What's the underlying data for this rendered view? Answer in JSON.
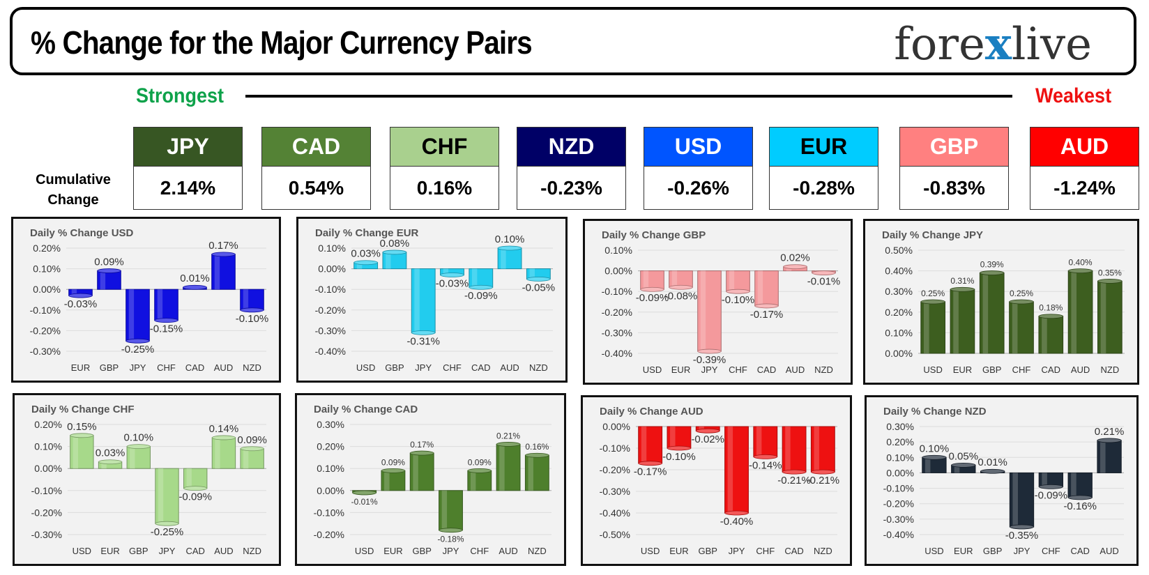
{
  "header": {
    "title": "% Change for the Major Currency Pairs",
    "logo_left": "fore",
    "logo_mark": "x",
    "logo_right": "live"
  },
  "ranking": {
    "strongest_label": "Strongest",
    "weakest_label": "Weakest",
    "cumulative_label_line1": "Cumulative",
    "cumulative_label_line2": "Change",
    "currencies": [
      {
        "code": "JPY",
        "value": "2.14%",
        "bg": "#375623",
        "fg": "#ffffff"
      },
      {
        "code": "CAD",
        "value": "0.54%",
        "bg": "#548235",
        "fg": "#ffffff"
      },
      {
        "code": "CHF",
        "value": "0.16%",
        "bg": "#a9d08e",
        "fg": "#000000"
      },
      {
        "code": "NZD",
        "value": "-0.23%",
        "bg": "#000066",
        "fg": "#ffffff"
      },
      {
        "code": "USD",
        "value": "-0.26%",
        "bg": "#0055ff",
        "fg": "#ffffff"
      },
      {
        "code": "EUR",
        "value": "-0.28%",
        "bg": "#00ccff",
        "fg": "#000000"
      },
      {
        "code": "GBP",
        "value": "-0.83%",
        "bg": "#ff8080",
        "fg": "#ffffff"
      },
      {
        "code": "AUD",
        "value": "-1.24%",
        "bg": "#ff0000",
        "fg": "#ffffff"
      }
    ]
  },
  "chart_data": [
    {
      "type": "bar",
      "title": "Daily % Change USD",
      "color": "#1010e0",
      "categories": [
        "EUR",
        "GBP",
        "JPY",
        "CHF",
        "CAD",
        "AUD",
        "NZD"
      ],
      "values": [
        -0.03,
        0.09,
        -0.25,
        -0.15,
        0.01,
        0.17,
        -0.1
      ],
      "ylim": [
        -0.3,
        0.2
      ],
      "yticks": [
        "0.20%",
        "0.10%",
        "0.00%",
        "-0.10%",
        "-0.20%",
        "-0.30%"
      ]
    },
    {
      "type": "bar",
      "title": "Daily % Change EUR",
      "color": "#22ccee",
      "categories": [
        "USD",
        "GBP",
        "JPY",
        "CHF",
        "CAD",
        "AUD",
        "NZD"
      ],
      "values": [
        0.03,
        0.08,
        -0.31,
        -0.03,
        -0.09,
        0.1,
        -0.05
      ],
      "ylim": [
        -0.4,
        0.1
      ],
      "yticks": [
        "0.10%",
        "0.00%",
        "-0.10%",
        "-0.20%",
        "-0.30%",
        "-0.40%"
      ]
    },
    {
      "type": "bar",
      "title": "Daily % Change GBP",
      "color": "#f4999c",
      "categories": [
        "USD",
        "EUR",
        "JPY",
        "CHF",
        "CAD",
        "AUD",
        "NZD"
      ],
      "values": [
        -0.09,
        -0.08,
        -0.39,
        -0.1,
        -0.17,
        0.02,
        -0.01
      ],
      "ylim": [
        -0.4,
        0.1
      ],
      "yticks": [
        "0.10%",
        "0.00%",
        "-0.10%",
        "-0.20%",
        "-0.30%",
        "-0.40%"
      ]
    },
    {
      "type": "bar",
      "title": "Daily % Change JPY",
      "color": "#3d5e1f",
      "categories": [
        "USD",
        "EUR",
        "GBP",
        "CHF",
        "CAD",
        "AUD",
        "NZD"
      ],
      "values": [
        0.25,
        0.31,
        0.39,
        0.25,
        0.18,
        0.4,
        0.35
      ],
      "ylim": [
        0.0,
        0.5
      ],
      "yticks": [
        "0.50%",
        "0.40%",
        "0.30%",
        "0.20%",
        "0.10%",
        "0.00%"
      ]
    },
    {
      "type": "bar",
      "title": "Daily % Change CHF",
      "color": "#a7d98a",
      "categories": [
        "USD",
        "EUR",
        "GBP",
        "JPY",
        "CAD",
        "AUD",
        "NZD"
      ],
      "values": [
        0.15,
        0.03,
        0.1,
        -0.25,
        -0.09,
        0.14,
        0.09
      ],
      "ylim": [
        -0.3,
        0.2
      ],
      "yticks": [
        "0.20%",
        "0.10%",
        "0.00%",
        "-0.10%",
        "-0.20%",
        "-0.30%"
      ]
    },
    {
      "type": "bar",
      "title": "Daily % Change CAD",
      "color": "#4e7f2c",
      "categories": [
        "USD",
        "EUR",
        "GBP",
        "JPY",
        "CHF",
        "AUD",
        "NZD"
      ],
      "values": [
        -0.01,
        0.09,
        0.17,
        -0.18,
        0.09,
        0.21,
        0.16
      ],
      "ylim": [
        -0.2,
        0.3
      ],
      "yticks": [
        "0.30%",
        "0.20%",
        "0.10%",
        "0.00%",
        "-0.10%",
        "-0.20%"
      ]
    },
    {
      "type": "bar",
      "title": "Daily % Change AUD",
      "color": "#ee1111",
      "categories": [
        "USD",
        "EUR",
        "GBP",
        "JPY",
        "CHF",
        "CAD",
        "NZD"
      ],
      "values": [
        -0.17,
        -0.1,
        -0.02,
        -0.4,
        -0.14,
        -0.21,
        -0.21
      ],
      "ylim": [
        -0.5,
        0.0
      ],
      "yticks": [
        "0.00%",
        "-0.10%",
        "-0.20%",
        "-0.30%",
        "-0.40%",
        "-0.50%"
      ]
    },
    {
      "type": "bar",
      "title": "Daily % Change NZD",
      "color": "#1e2a38",
      "categories": [
        "USD",
        "EUR",
        "GBP",
        "JPY",
        "CHF",
        "CAD",
        "AUD"
      ],
      "values": [
        0.1,
        0.05,
        0.01,
        -0.35,
        -0.09,
        -0.16,
        0.21
      ],
      "ylim": [
        -0.4,
        0.3
      ],
      "yticks": [
        "0.30%",
        "0.20%",
        "0.10%",
        "0.00%",
        "-0.10%",
        "-0.20%",
        "-0.30%",
        "-0.40%"
      ]
    }
  ]
}
